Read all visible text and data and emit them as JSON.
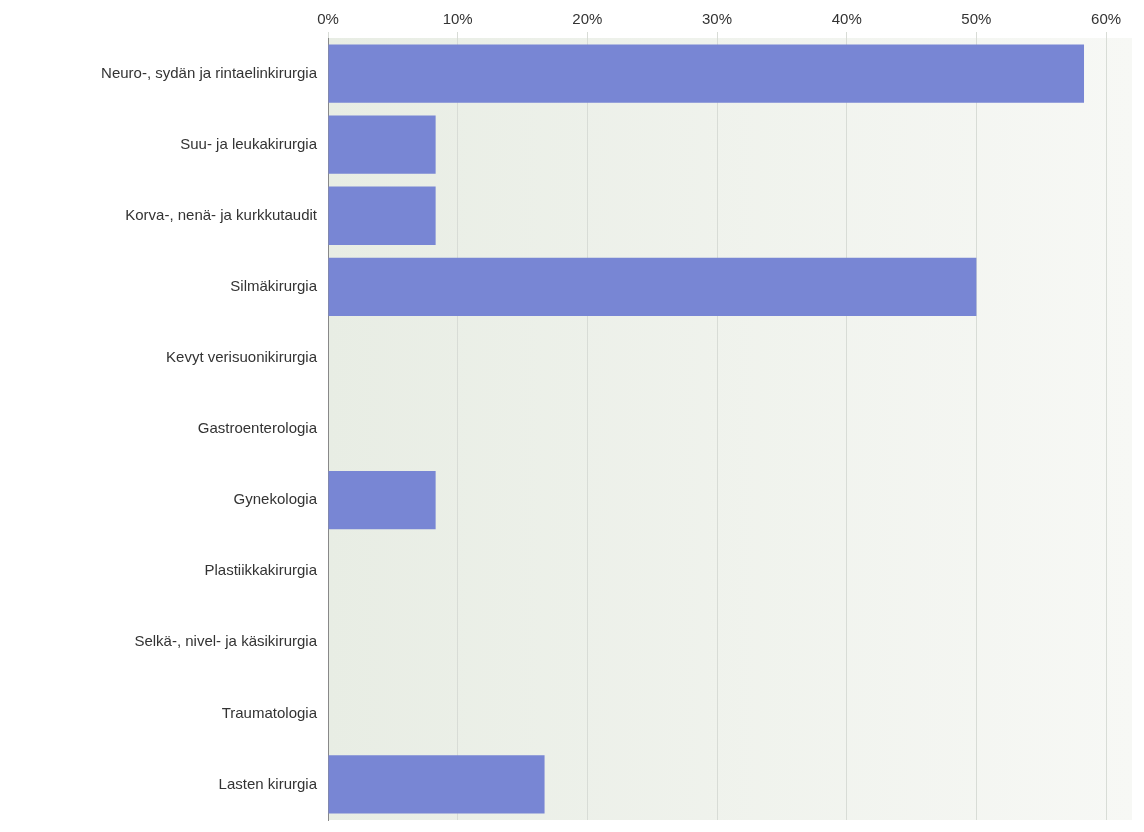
{
  "chart_data": {
    "type": "bar",
    "orientation": "horizontal",
    "categories": [
      "Neuro-, sydän ja rintaelinkirurgia",
      "Suu- ja leukakirurgia",
      "Korva-, nenä- ja kurkkutaudit",
      "Silmäkirurgia",
      "Kevyt verisuonikirurgia",
      "Gastroenterologia",
      "Gynekologia",
      "Plastiikkakirurgia",
      "Selkä-, nivel- ja käsikirurgia",
      "Traumatologia",
      "Lasten kirurgia"
    ],
    "values": [
      58.3,
      8.3,
      8.3,
      50,
      0,
      0,
      8.3,
      0,
      0,
      0,
      16.7
    ],
    "color": "#7886d4",
    "xlim": [
      0,
      62
    ],
    "xticks": [
      {
        "value": 0,
        "label": "0%"
      },
      {
        "value": 10,
        "label": "10%"
      },
      {
        "value": 20,
        "label": "20%"
      },
      {
        "value": 30,
        "label": "30%"
      },
      {
        "value": 40,
        "label": "40%"
      },
      {
        "value": 50,
        "label": "50%"
      },
      {
        "value": 60,
        "label": "60%"
      }
    ],
    "grid": "x",
    "legend": false
  }
}
